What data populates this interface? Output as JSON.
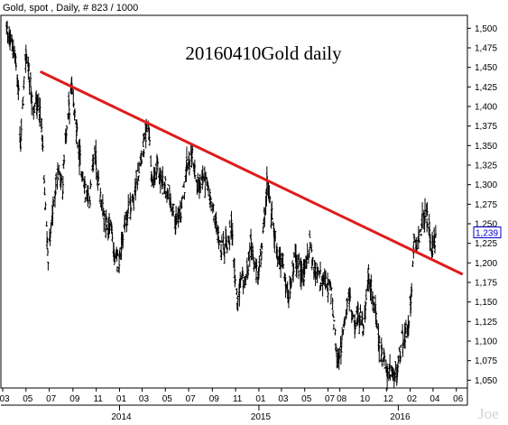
{
  "header": {
    "text": "Gold, spot , Daily, # 823 / 1000"
  },
  "chart_data": {
    "type": "bar",
    "subtype": "OHLC daily price bars",
    "title": "20160410Gold daily",
    "watermark": "Joe",
    "y_axis": {
      "side": "right",
      "ylim": [
        1040,
        1520
      ],
      "ticks": [
        1050,
        1075,
        1100,
        1125,
        1150,
        1175,
        1200,
        1225,
        1250,
        1275,
        1300,
        1325,
        1350,
        1375,
        1400,
        1425,
        1450,
        1475,
        1500
      ],
      "tick_labels": [
        "1,050",
        "1,075",
        "1,100",
        "1,125",
        "1,150",
        "1,175",
        "1,200",
        "1,225",
        "1,250",
        "1,275",
        "1,300",
        "1,325",
        "1,350",
        "1,375",
        "1,400",
        "1,425",
        "1,450",
        "1,475",
        "1,500"
      ]
    },
    "x_axis": {
      "start": "2013-03-01",
      "end": "2016-06-30",
      "month_labels": [
        {
          "date": "2013-03-01",
          "label": "03"
        },
        {
          "date": "2013-05-01",
          "label": "05"
        },
        {
          "date": "2013-07-01",
          "label": "07"
        },
        {
          "date": "2013-09-01",
          "label": "09"
        },
        {
          "date": "2013-11-01",
          "label": "11"
        },
        {
          "date": "2014-01-01",
          "label": "01"
        },
        {
          "date": "2014-03-01",
          "label": "03"
        },
        {
          "date": "2014-05-01",
          "label": "05"
        },
        {
          "date": "2014-07-01",
          "label": "07"
        },
        {
          "date": "2014-09-01",
          "label": "09"
        },
        {
          "date": "2014-11-01",
          "label": "11"
        },
        {
          "date": "2015-01-01",
          "label": "01"
        },
        {
          "date": "2015-03-01",
          "label": "03"
        },
        {
          "date": "2015-05-01",
          "label": "05"
        },
        {
          "date": "2015-07-01",
          "label": "07"
        },
        {
          "date": "2015-08-01",
          "label": "08"
        },
        {
          "date": "2015-10-01",
          "label": "10"
        },
        {
          "date": "2015-12-01",
          "label": "12"
        },
        {
          "date": "2016-02-01",
          "label": "02"
        },
        {
          "date": "2016-04-01",
          "label": "04"
        },
        {
          "date": "2016-06-01",
          "label": "06"
        }
      ],
      "year_labels": [
        {
          "date": "2014-01-01",
          "label": "2014"
        },
        {
          "date": "2015-01-01",
          "label": "2015"
        },
        {
          "date": "2016-01-01",
          "label": "2016"
        }
      ]
    },
    "last_price": {
      "value": 1239,
      "label": "1,239",
      "color": "#0000cc"
    },
    "trendline": {
      "color": "#e01b1b",
      "points": [
        {
          "date": "2013-06-10",
          "value": 1444
        },
        {
          "date": "2016-06-15",
          "value": 1186
        }
      ]
    },
    "series": [
      {
        "color": "#000000",
        "points": [
          {
            "date": "2013-03-10",
            "value": 1500
          },
          {
            "date": "2013-04-01",
            "value": 1470
          },
          {
            "date": "2013-04-12",
            "value": 1420
          },
          {
            "date": "2013-04-16",
            "value": 1345
          },
          {
            "date": "2013-05-01",
            "value": 1470
          },
          {
            "date": "2013-05-10",
            "value": 1440
          },
          {
            "date": "2013-05-20",
            "value": 1390
          },
          {
            "date": "2013-05-30",
            "value": 1410
          },
          {
            "date": "2013-06-10",
            "value": 1380
          },
          {
            "date": "2013-06-20",
            "value": 1275
          },
          {
            "date": "2013-06-28",
            "value": 1210
          },
          {
            "date": "2013-07-05",
            "value": 1240
          },
          {
            "date": "2013-07-15",
            "value": 1290
          },
          {
            "date": "2013-07-25",
            "value": 1320
          },
          {
            "date": "2013-08-05",
            "value": 1300
          },
          {
            "date": "2013-08-15",
            "value": 1370
          },
          {
            "date": "2013-08-28",
            "value": 1420
          },
          {
            "date": "2013-09-10",
            "value": 1370
          },
          {
            "date": "2013-09-20",
            "value": 1330
          },
          {
            "date": "2013-10-01",
            "value": 1295
          },
          {
            "date": "2013-10-15",
            "value": 1280
          },
          {
            "date": "2013-10-28",
            "value": 1345
          },
          {
            "date": "2013-11-10",
            "value": 1290
          },
          {
            "date": "2013-11-25",
            "value": 1245
          },
          {
            "date": "2013-12-10",
            "value": 1250
          },
          {
            "date": "2013-12-20",
            "value": 1200
          },
          {
            "date": "2013-12-31",
            "value": 1205
          },
          {
            "date": "2014-01-10",
            "value": 1240
          },
          {
            "date": "2014-01-25",
            "value": 1265
          },
          {
            "date": "2014-02-10",
            "value": 1285
          },
          {
            "date": "2014-02-25",
            "value": 1335
          },
          {
            "date": "2014-03-10",
            "value": 1355
          },
          {
            "date": "2014-03-17",
            "value": 1380
          },
          {
            "date": "2014-03-28",
            "value": 1295
          },
          {
            "date": "2014-04-10",
            "value": 1320
          },
          {
            "date": "2014-04-25",
            "value": 1300
          },
          {
            "date": "2014-05-10",
            "value": 1290
          },
          {
            "date": "2014-05-28",
            "value": 1255
          },
          {
            "date": "2014-06-10",
            "value": 1260
          },
          {
            "date": "2014-06-25",
            "value": 1320
          },
          {
            "date": "2014-07-10",
            "value": 1340
          },
          {
            "date": "2014-07-25",
            "value": 1295
          },
          {
            "date": "2014-08-10",
            "value": 1310
          },
          {
            "date": "2014-08-25",
            "value": 1285
          },
          {
            "date": "2014-09-10",
            "value": 1250
          },
          {
            "date": "2014-09-25",
            "value": 1220
          },
          {
            "date": "2014-10-10",
            "value": 1225
          },
          {
            "date": "2014-10-22",
            "value": 1245
          },
          {
            "date": "2014-11-05",
            "value": 1145
          },
          {
            "date": "2014-11-15",
            "value": 1175
          },
          {
            "date": "2014-11-28",
            "value": 1175
          },
          {
            "date": "2014-12-10",
            "value": 1225
          },
          {
            "date": "2014-12-20",
            "value": 1195
          },
          {
            "date": "2014-12-31",
            "value": 1185
          },
          {
            "date": "2015-01-10",
            "value": 1220
          },
          {
            "date": "2015-01-22",
            "value": 1300
          },
          {
            "date": "2015-02-05",
            "value": 1260
          },
          {
            "date": "2015-02-20",
            "value": 1205
          },
          {
            "date": "2015-03-05",
            "value": 1200
          },
          {
            "date": "2015-03-18",
            "value": 1150
          },
          {
            "date": "2015-04-01",
            "value": 1200
          },
          {
            "date": "2015-04-15",
            "value": 1195
          },
          {
            "date": "2015-04-28",
            "value": 1185
          },
          {
            "date": "2015-05-15",
            "value": 1225
          },
          {
            "date": "2015-05-28",
            "value": 1190
          },
          {
            "date": "2015-06-10",
            "value": 1180
          },
          {
            "date": "2015-06-25",
            "value": 1175
          },
          {
            "date": "2015-07-10",
            "value": 1160
          },
          {
            "date": "2015-07-24",
            "value": 1080
          },
          {
            "date": "2015-08-05",
            "value": 1090
          },
          {
            "date": "2015-08-24",
            "value": 1165
          },
          {
            "date": "2015-09-05",
            "value": 1120
          },
          {
            "date": "2015-09-20",
            "value": 1135
          },
          {
            "date": "2015-10-01",
            "value": 1115
          },
          {
            "date": "2015-10-15",
            "value": 1185
          },
          {
            "date": "2015-11-01",
            "value": 1140
          },
          {
            "date": "2015-11-15",
            "value": 1085
          },
          {
            "date": "2015-12-01",
            "value": 1065
          },
          {
            "date": "2015-12-17",
            "value": 1050
          },
          {
            "date": "2015-12-31",
            "value": 1065
          },
          {
            "date": "2016-01-10",
            "value": 1100
          },
          {
            "date": "2016-01-25",
            "value": 1115
          },
          {
            "date": "2016-02-05",
            "value": 1165
          },
          {
            "date": "2016-02-11",
            "value": 1240
          },
          {
            "date": "2016-02-20",
            "value": 1225
          },
          {
            "date": "2016-03-01",
            "value": 1245
          },
          {
            "date": "2016-03-10",
            "value": 1265
          },
          {
            "date": "2016-03-18",
            "value": 1255
          },
          {
            "date": "2016-03-28",
            "value": 1220
          },
          {
            "date": "2016-04-04",
            "value": 1225
          },
          {
            "date": "2016-04-08",
            "value": 1239
          }
        ]
      }
    ]
  }
}
